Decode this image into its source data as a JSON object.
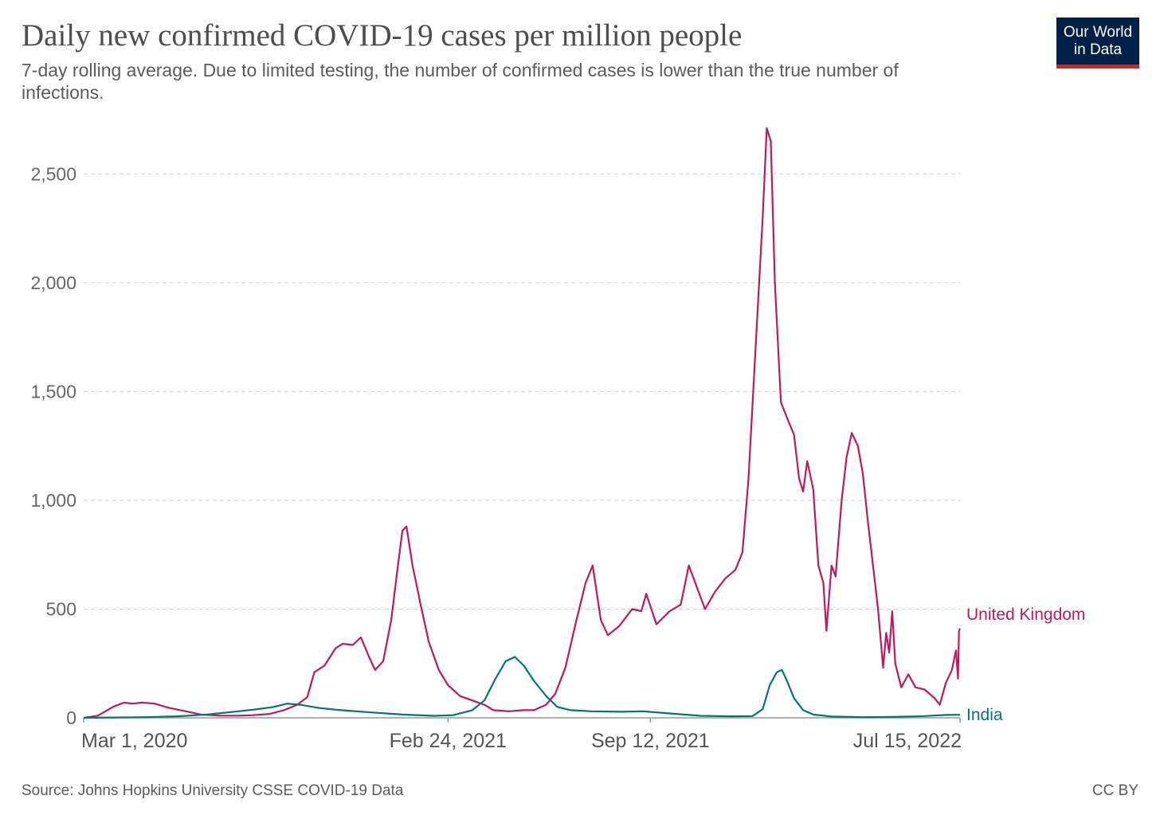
{
  "header": {
    "title": "Daily new confirmed COVID-19 cases per million people",
    "subtitle": "7-day rolling average. Due to limited testing, the number of confirmed cases is lower than the true number of infections.",
    "logo_line1": "Our World",
    "logo_line2": "in Data"
  },
  "footer": {
    "source": "Source: Johns Hopkins University CSSE COVID-19 Data",
    "license": "CC BY"
  },
  "colors": {
    "united_kingdom": "#c2185b",
    "india": "#00786f",
    "grid": "#d0d0d0",
    "axis": "#999999"
  },
  "chart_data": {
    "type": "line",
    "title": "Daily new confirmed COVID-19 cases per million people",
    "subtitle": "7-day rolling average. Due to limited testing, the number of confirmed cases is lower than the true number of infections.",
    "xlabel": "",
    "ylabel": "",
    "xlim": [
      "2020-03-01",
      "2022-07-15"
    ],
    "ylim": [
      0,
      2750
    ],
    "x_ticks": [
      {
        "date": "2020-03-01",
        "label": "Mar 1, 2020"
      },
      {
        "date": "2021-02-24",
        "label": "Feb 24, 2021"
      },
      {
        "date": "2021-09-12",
        "label": "Sep 12, 2021"
      },
      {
        "date": "2022-07-15",
        "label": "Jul 15, 2022"
      }
    ],
    "y_ticks": [
      {
        "value": 0,
        "label": "0"
      },
      {
        "value": 500,
        "label": "500"
      },
      {
        "value": 1000,
        "label": "1,000"
      },
      {
        "value": 1500,
        "label": "1,500"
      },
      {
        "value": 2000,
        "label": "2,000"
      },
      {
        "value": 2500,
        "label": "2,500"
      }
    ],
    "grid": "horizontal dashed",
    "legend": "labels at line ends (right)",
    "series": [
      {
        "name": "United Kingdom",
        "color": "#c2185b",
        "points": [
          [
            "2020-03-01",
            0
          ],
          [
            "2020-03-15",
            10
          ],
          [
            "2020-03-30",
            50
          ],
          [
            "2020-04-10",
            70
          ],
          [
            "2020-04-18",
            65
          ],
          [
            "2020-04-28",
            70
          ],
          [
            "2020-05-10",
            65
          ],
          [
            "2020-05-25",
            45
          ],
          [
            "2020-06-10",
            30
          ],
          [
            "2020-06-25",
            15
          ],
          [
            "2020-07-15",
            10
          ],
          [
            "2020-08-01",
            10
          ],
          [
            "2020-08-15",
            12
          ],
          [
            "2020-09-01",
            18
          ],
          [
            "2020-09-15",
            35
          ],
          [
            "2020-09-28",
            60
          ],
          [
            "2020-10-08",
            95
          ],
          [
            "2020-10-15",
            210
          ],
          [
            "2020-10-25",
            240
          ],
          [
            "2020-11-05",
            320
          ],
          [
            "2020-11-12",
            340
          ],
          [
            "2020-11-22",
            335
          ],
          [
            "2020-11-30",
            370
          ],
          [
            "2020-12-08",
            280
          ],
          [
            "2020-12-14",
            220
          ],
          [
            "2020-12-22",
            260
          ],
          [
            "2020-12-30",
            450
          ],
          [
            "2021-01-05",
            680
          ],
          [
            "2021-01-10",
            860
          ],
          [
            "2021-01-14",
            880
          ],
          [
            "2021-01-20",
            700
          ],
          [
            "2021-01-28",
            520
          ],
          [
            "2021-02-05",
            350
          ],
          [
            "2021-02-15",
            220
          ],
          [
            "2021-02-24",
            150
          ],
          [
            "2021-03-08",
            100
          ],
          [
            "2021-03-20",
            80
          ],
          [
            "2021-04-01",
            60
          ],
          [
            "2021-04-10",
            35
          ],
          [
            "2021-04-25",
            30
          ],
          [
            "2021-05-10",
            35
          ],
          [
            "2021-05-20",
            35
          ],
          [
            "2021-06-01",
            60
          ],
          [
            "2021-06-10",
            110
          ],
          [
            "2021-06-20",
            230
          ],
          [
            "2021-07-01",
            450
          ],
          [
            "2021-07-10",
            620
          ],
          [
            "2021-07-17",
            700
          ],
          [
            "2021-07-25",
            450
          ],
          [
            "2021-08-01",
            380
          ],
          [
            "2021-08-12",
            420
          ],
          [
            "2021-08-25",
            500
          ],
          [
            "2021-09-03",
            490
          ],
          [
            "2021-09-08",
            570
          ],
          [
            "2021-09-18",
            430
          ],
          [
            "2021-10-01",
            490
          ],
          [
            "2021-10-12",
            520
          ],
          [
            "2021-10-20",
            700
          ],
          [
            "2021-10-28",
            600
          ],
          [
            "2021-11-05",
            500
          ],
          [
            "2021-11-15",
            580
          ],
          [
            "2021-11-25",
            640
          ],
          [
            "2021-12-05",
            680
          ],
          [
            "2021-12-12",
            760
          ],
          [
            "2021-12-18",
            1100
          ],
          [
            "2021-12-25",
            1700
          ],
          [
            "2022-01-01",
            2300
          ],
          [
            "2022-01-05",
            2710
          ],
          [
            "2022-01-09",
            2650
          ],
          [
            "2022-01-13",
            2000
          ],
          [
            "2022-01-19",
            1450
          ],
          [
            "2022-01-25",
            1380
          ],
          [
            "2022-02-01",
            1300
          ],
          [
            "2022-02-06",
            1100
          ],
          [
            "2022-02-10",
            1040
          ],
          [
            "2022-02-14",
            1180
          ],
          [
            "2022-02-20",
            1050
          ],
          [
            "2022-02-25",
            700
          ],
          [
            "2022-03-02",
            620
          ],
          [
            "2022-03-05",
            400
          ],
          [
            "2022-03-10",
            700
          ],
          [
            "2022-03-14",
            650
          ],
          [
            "2022-03-20",
            1000
          ],
          [
            "2022-03-25",
            1200
          ],
          [
            "2022-03-30",
            1310
          ],
          [
            "2022-04-05",
            1250
          ],
          [
            "2022-04-10",
            1120
          ],
          [
            "2022-04-15",
            900
          ],
          [
            "2022-04-20",
            700
          ],
          [
            "2022-04-25",
            500
          ],
          [
            "2022-04-30",
            230
          ],
          [
            "2022-05-03",
            390
          ],
          [
            "2022-05-06",
            300
          ],
          [
            "2022-05-09",
            490
          ],
          [
            "2022-05-12",
            250
          ],
          [
            "2022-05-18",
            140
          ],
          [
            "2022-05-25",
            200
          ],
          [
            "2022-06-01",
            140
          ],
          [
            "2022-06-10",
            130
          ],
          [
            "2022-06-20",
            90
          ],
          [
            "2022-06-25",
            60
          ],
          [
            "2022-07-01",
            160
          ],
          [
            "2022-07-07",
            220
          ],
          [
            "2022-07-11",
            310
          ],
          [
            "2022-07-13",
            180
          ],
          [
            "2022-07-14",
            400
          ],
          [
            "2022-07-15",
            410
          ]
        ]
      },
      {
        "name": "India",
        "color": "#00786f",
        "points": [
          [
            "2020-03-01",
            0
          ],
          [
            "2020-05-01",
            3
          ],
          [
            "2020-06-01",
            7
          ],
          [
            "2020-07-01",
            15
          ],
          [
            "2020-08-01",
            30
          ],
          [
            "2020-08-20",
            40
          ],
          [
            "2020-09-05",
            50
          ],
          [
            "2020-09-18",
            65
          ],
          [
            "2020-10-01",
            60
          ],
          [
            "2020-10-20",
            45
          ],
          [
            "2020-11-10",
            35
          ],
          [
            "2020-12-10",
            25
          ],
          [
            "2021-01-10",
            15
          ],
          [
            "2021-02-10",
            9
          ],
          [
            "2021-03-01",
            12
          ],
          [
            "2021-03-20",
            35
          ],
          [
            "2021-04-01",
            80
          ],
          [
            "2021-04-12",
            180
          ],
          [
            "2021-04-22",
            260
          ],
          [
            "2021-05-01",
            280
          ],
          [
            "2021-05-10",
            240
          ],
          [
            "2021-05-20",
            170
          ],
          [
            "2021-06-01",
            100
          ],
          [
            "2021-06-12",
            50
          ],
          [
            "2021-06-25",
            35
          ],
          [
            "2021-07-15",
            30
          ],
          [
            "2021-08-15",
            28
          ],
          [
            "2021-09-05",
            30
          ],
          [
            "2021-10-01",
            20
          ],
          [
            "2021-11-01",
            9
          ],
          [
            "2021-12-01",
            7
          ],
          [
            "2021-12-22",
            8
          ],
          [
            "2022-01-01",
            40
          ],
          [
            "2022-01-08",
            150
          ],
          [
            "2022-01-15",
            210
          ],
          [
            "2022-01-20",
            220
          ],
          [
            "2022-01-25",
            170
          ],
          [
            "2022-02-01",
            90
          ],
          [
            "2022-02-10",
            35
          ],
          [
            "2022-02-20",
            15
          ],
          [
            "2022-03-10",
            6
          ],
          [
            "2022-04-10",
            3
          ],
          [
            "2022-05-10",
            4
          ],
          [
            "2022-06-10",
            8
          ],
          [
            "2022-07-01",
            13
          ],
          [
            "2022-07-15",
            14
          ]
        ]
      }
    ]
  }
}
